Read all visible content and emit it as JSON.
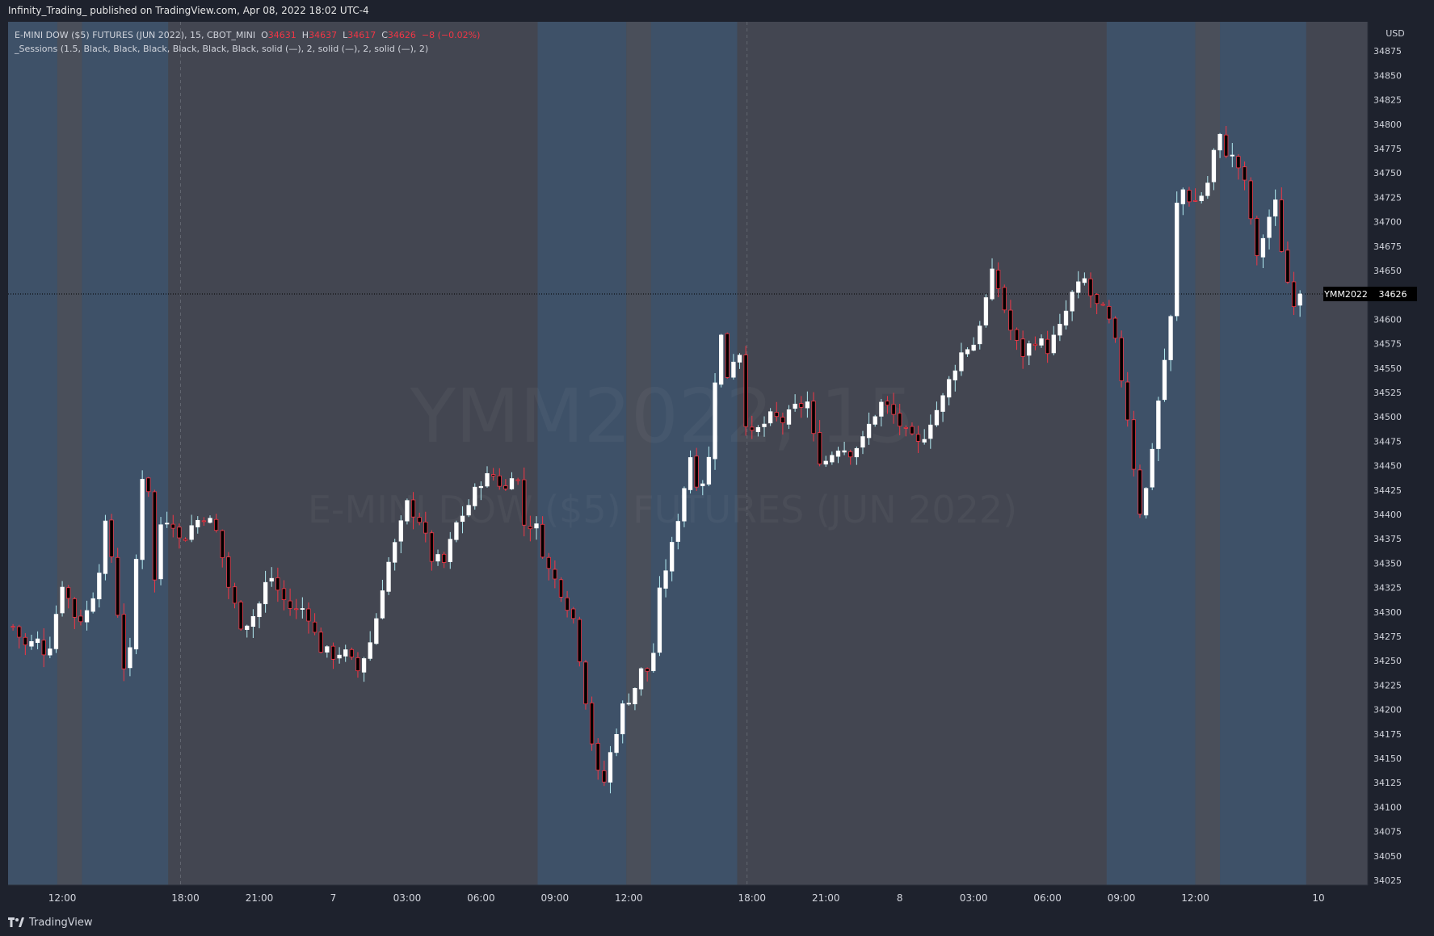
{
  "publication": "Infinity_Trading_ published on TradingView.com, Apr 08, 2022 18:02 UTC-4",
  "legend": {
    "symbol": "E-MINI DOW ($5) FUTURES (JUN 2022), 15, CBOT_MINI",
    "o_label": "O",
    "o_value": "34631",
    "h_label": "H",
    "h_value": "34637",
    "l_label": "L",
    "l_value": "34617",
    "c_label": "C",
    "c_value": "34626",
    "change": "−8 (−0.02%)",
    "indicator": "_Sessions (1.5, Black, Black, Black, Black, Black, Black, solid (—), 2, solid (—), 2, solid (—), 2)"
  },
  "watermark": {
    "line1": "YMM2022, 15",
    "line2": "E-MINI DOW ($5) FUTURES (JUN 2022)"
  },
  "footer": {
    "brand": "TradingView",
    "logo_icon": "tradingview-logo-icon"
  },
  "colors": {
    "background": "#434651",
    "session_band": "#3e5168",
    "session_gap": "#4a4f5a",
    "up_candle": "#ffffff",
    "down_candle": "#f23645",
    "axis_bg": "#1e222d",
    "price_tag_symbol_bg": "#000000",
    "price_tag_value_bg": "#000000"
  },
  "chart_data": {
    "type": "candlestick",
    "symbol": "YMM2022",
    "interval_minutes": 15,
    "currency": "USD",
    "ylim": [
      34025,
      34900
    ],
    "y_ticks": [
      34025,
      34050,
      34075,
      34100,
      34125,
      34150,
      34175,
      34200,
      34225,
      34250,
      34275,
      34300,
      34325,
      34350,
      34375,
      34400,
      34425,
      34450,
      34475,
      34500,
      34525,
      34550,
      34575,
      34600,
      34625,
      34650,
      34675,
      34700,
      34725,
      34750,
      34775,
      34800,
      34825,
      34850,
      34875
    ],
    "x_tick_labels": [
      "12:00",
      "18:00",
      "21:00",
      "7",
      "03:00",
      "06:00",
      "09:00",
      "12:00",
      "18:00",
      "21:00",
      "8",
      "03:00",
      "06:00",
      "09:00",
      "12:00",
      "10"
    ],
    "x_tick_positions": [
      2,
      7,
      10,
      13,
      16,
      19,
      22,
      25,
      30,
      33,
      36,
      39,
      42,
      45,
      48,
      53
    ],
    "x_range_hours": [
      -0.2,
      55.0
    ],
    "last_price": 34626,
    "last_price_label": "YMM2022",
    "last_price_value": "34626",
    "sessions": [
      {
        "start": -0.2,
        "end": 1.8,
        "type": "session"
      },
      {
        "start": 1.8,
        "end": 2.8,
        "type": "gap"
      },
      {
        "start": 2.8,
        "end": 6.3,
        "type": "session"
      },
      {
        "start": 21.3,
        "end": 24.9,
        "type": "session"
      },
      {
        "start": 24.9,
        "end": 25.9,
        "type": "gap"
      },
      {
        "start": 25.9,
        "end": 29.4,
        "type": "session"
      },
      {
        "start": 44.4,
        "end": 48.0,
        "type": "session"
      },
      {
        "start": 48.0,
        "end": 49.0,
        "type": "gap"
      },
      {
        "start": 49.0,
        "end": 52.5,
        "type": "session"
      }
    ],
    "day_separators": [
      6.8,
      29.8
    ],
    "anchors": [
      {
        "t": 0.0,
        "p": 34285
      },
      {
        "t": 0.5,
        "p": 34265
      },
      {
        "t": 1.0,
        "p": 34270
      },
      {
        "t": 1.4,
        "p": 34255
      },
      {
        "t": 2.0,
        "p": 34330
      },
      {
        "t": 2.6,
        "p": 34290
      },
      {
        "t": 3.0,
        "p": 34300
      },
      {
        "t": 3.4,
        "p": 34330
      },
      {
        "t": 3.8,
        "p": 34395
      },
      {
        "t": 4.2,
        "p": 34320
      },
      {
        "t": 4.4,
        "p": 34240
      },
      {
        "t": 4.8,
        "p": 34260
      },
      {
        "t": 5.1,
        "p": 34400
      },
      {
        "t": 5.4,
        "p": 34480
      },
      {
        "t": 5.7,
        "p": 34320
      },
      {
        "t": 6.0,
        "p": 34390
      },
      {
        "t": 6.4,
        "p": 34400
      },
      {
        "t": 6.8,
        "p": 34370
      },
      {
        "t": 7.3,
        "p": 34390
      },
      {
        "t": 7.8,
        "p": 34400
      },
      {
        "t": 8.3,
        "p": 34380
      },
      {
        "t": 8.8,
        "p": 34320
      },
      {
        "t": 9.3,
        "p": 34285
      },
      {
        "t": 9.9,
        "p": 34300
      },
      {
        "t": 10.4,
        "p": 34340
      },
      {
        "t": 10.9,
        "p": 34315
      },
      {
        "t": 11.4,
        "p": 34300
      },
      {
        "t": 11.9,
        "p": 34305
      },
      {
        "t": 12.4,
        "p": 34265
      },
      {
        "t": 12.9,
        "p": 34255
      },
      {
        "t": 13.4,
        "p": 34260
      },
      {
        "t": 14.0,
        "p": 34240
      },
      {
        "t": 14.6,
        "p": 34275
      },
      {
        "t": 15.1,
        "p": 34340
      },
      {
        "t": 15.6,
        "p": 34375
      },
      {
        "t": 16.0,
        "p": 34410
      },
      {
        "t": 16.5,
        "p": 34395
      },
      {
        "t": 17.0,
        "p": 34355
      },
      {
        "t": 17.5,
        "p": 34350
      },
      {
        "t": 18.0,
        "p": 34390
      },
      {
        "t": 18.5,
        "p": 34410
      },
      {
        "t": 19.0,
        "p": 34435
      },
      {
        "t": 19.5,
        "p": 34440
      },
      {
        "t": 20.0,
        "p": 34425
      },
      {
        "t": 20.4,
        "p": 34455
      },
      {
        "t": 20.7,
        "p": 34390
      },
      {
        "t": 21.2,
        "p": 34390
      },
      {
        "t": 21.7,
        "p": 34345
      },
      {
        "t": 22.3,
        "p": 34320
      },
      {
        "t": 22.8,
        "p": 34290
      },
      {
        "t": 23.2,
        "p": 34220
      },
      {
        "t": 23.6,
        "p": 34150
      },
      {
        "t": 23.9,
        "p": 34115
      },
      {
        "t": 24.3,
        "p": 34160
      },
      {
        "t": 24.7,
        "p": 34200
      },
      {
        "t": 25.2,
        "p": 34220
      },
      {
        "t": 25.6,
        "p": 34245
      },
      {
        "t": 25.9,
        "p": 34235
      },
      {
        "t": 26.3,
        "p": 34330
      },
      {
        "t": 26.7,
        "p": 34360
      },
      {
        "t": 27.1,
        "p": 34410
      },
      {
        "t": 27.5,
        "p": 34460
      },
      {
        "t": 27.8,
        "p": 34430
      },
      {
        "t": 28.2,
        "p": 34440
      },
      {
        "t": 28.5,
        "p": 34540
      },
      {
        "t": 28.8,
        "p": 34590
      },
      {
        "t": 29.1,
        "p": 34520
      },
      {
        "t": 29.4,
        "p": 34600
      },
      {
        "t": 29.7,
        "p": 34500
      },
      {
        "t": 30.0,
        "p": 34480
      },
      {
        "t": 30.4,
        "p": 34490
      },
      {
        "t": 30.8,
        "p": 34500
      },
      {
        "t": 31.3,
        "p": 34495
      },
      {
        "t": 31.8,
        "p": 34510
      },
      {
        "t": 32.3,
        "p": 34515
      },
      {
        "t": 32.6,
        "p": 34460
      },
      {
        "t": 33.0,
        "p": 34455
      },
      {
        "t": 33.5,
        "p": 34470
      },
      {
        "t": 34.0,
        "p": 34465
      },
      {
        "t": 34.5,
        "p": 34475
      },
      {
        "t": 34.9,
        "p": 34500
      },
      {
        "t": 35.3,
        "p": 34515
      },
      {
        "t": 35.8,
        "p": 34500
      },
      {
        "t": 36.3,
        "p": 34480
      },
      {
        "t": 36.8,
        "p": 34470
      },
      {
        "t": 37.2,
        "p": 34495
      },
      {
        "t": 37.7,
        "p": 34515
      },
      {
        "t": 38.2,
        "p": 34550
      },
      {
        "t": 38.6,
        "p": 34570
      },
      {
        "t": 39.0,
        "p": 34575
      },
      {
        "t": 39.4,
        "p": 34610
      },
      {
        "t": 39.8,
        "p": 34650
      },
      {
        "t": 40.2,
        "p": 34615
      },
      {
        "t": 40.6,
        "p": 34580
      },
      {
        "t": 41.0,
        "p": 34565
      },
      {
        "t": 41.5,
        "p": 34580
      },
      {
        "t": 42.0,
        "p": 34570
      },
      {
        "t": 42.5,
        "p": 34590
      },
      {
        "t": 43.0,
        "p": 34625
      },
      {
        "t": 43.5,
        "p": 34640
      },
      {
        "t": 43.9,
        "p": 34615
      },
      {
        "t": 44.4,
        "p": 34605
      },
      {
        "t": 44.8,
        "p": 34570
      },
      {
        "t": 45.2,
        "p": 34510
      },
      {
        "t": 45.5,
        "p": 34450
      },
      {
        "t": 45.8,
        "p": 34395
      },
      {
        "t": 46.1,
        "p": 34440
      },
      {
        "t": 46.4,
        "p": 34500
      },
      {
        "t": 46.7,
        "p": 34550
      },
      {
        "t": 47.0,
        "p": 34600
      },
      {
        "t": 47.3,
        "p": 34740
      },
      {
        "t": 47.7,
        "p": 34725
      },
      {
        "t": 48.1,
        "p": 34720
      },
      {
        "t": 48.5,
        "p": 34740
      },
      {
        "t": 48.9,
        "p": 34790
      },
      {
        "t": 49.3,
        "p": 34770
      },
      {
        "t": 49.7,
        "p": 34760
      },
      {
        "t": 50.1,
        "p": 34730
      },
      {
        "t": 50.5,
        "p": 34660
      },
      {
        "t": 50.9,
        "p": 34700
      },
      {
        "t": 51.3,
        "p": 34720
      },
      {
        "t": 51.6,
        "p": 34650
      },
      {
        "t": 52.0,
        "p": 34620
      },
      {
        "t": 52.4,
        "p": 34626
      }
    ]
  }
}
